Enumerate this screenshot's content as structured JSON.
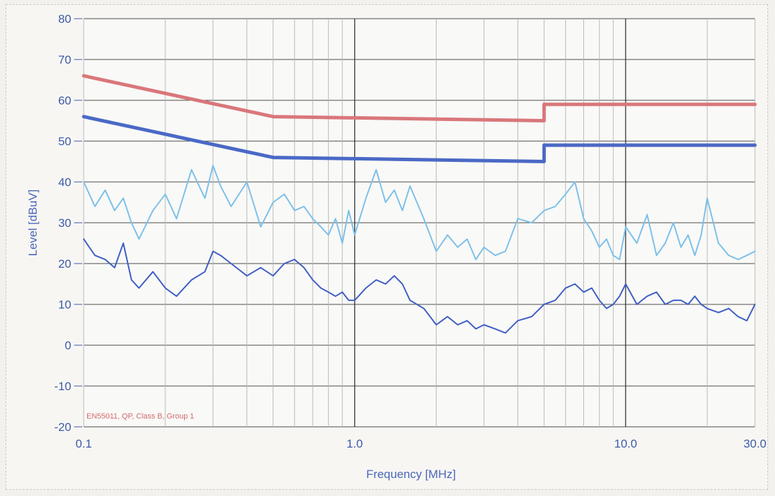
{
  "chart_data": {
    "type": "line",
    "title": "",
    "xlabel": "Frequency [MHz]",
    "ylabel": "Level [dBuV]",
    "x_scale": "log",
    "xlim": [
      0.1,
      30.0
    ],
    "ylim": [
      -20,
      80
    ],
    "x_tick_values": [
      0.1,
      1.0,
      10.0,
      30.0
    ],
    "x_tick_labels": [
      "0.1",
      "1.0",
      "10.0",
      "30.0"
    ],
    "y_tick_values": [
      80,
      70,
      60,
      50,
      40,
      30,
      20,
      10,
      0,
      -10,
      -20
    ],
    "y_tick_labels": [
      "80",
      "70",
      "60",
      "50",
      "40",
      "30",
      "20",
      "10",
      "0",
      "-10",
      "-20"
    ],
    "grid": true,
    "annotation": "EN55011, QP, Class B, Group 1",
    "series": [
      {
        "color": "#d9777a",
        "style": "limit",
        "x": [
          0.1,
          0.5,
          5.0,
          5.0,
          30.0
        ],
        "y": [
          66,
          56,
          55,
          59,
          59
        ]
      },
      {
        "color": "#4a69c6",
        "style": "limit",
        "x": [
          0.1,
          0.5,
          5.0,
          5.0,
          30.0
        ],
        "y": [
          56,
          46,
          45,
          49,
          49
        ]
      },
      {
        "color": "#7cc0ea",
        "style": "measurement",
        "x": [
          0.1,
          0.11,
          0.12,
          0.13,
          0.14,
          0.15,
          0.16,
          0.18,
          0.2,
          0.22,
          0.25,
          0.28,
          0.3,
          0.32,
          0.35,
          0.4,
          0.45,
          0.5,
          0.55,
          0.6,
          0.65,
          0.7,
          0.75,
          0.8,
          0.85,
          0.9,
          0.95,
          1.0,
          1.1,
          1.2,
          1.3,
          1.4,
          1.5,
          1.6,
          1.8,
          2.0,
          2.2,
          2.4,
          2.6,
          2.8,
          3.0,
          3.3,
          3.6,
          4.0,
          4.5,
          5.0,
          5.5,
          6.0,
          6.5,
          7.0,
          7.5,
          8.0,
          8.5,
          9.0,
          9.5,
          10.0,
          11.0,
          12.0,
          13.0,
          14.0,
          15.0,
          16.0,
          17.0,
          18.0,
          19.0,
          20.0,
          22.0,
          24.0,
          26.0,
          28.0,
          30.0
        ],
        "y": [
          40,
          34,
          38,
          33,
          36,
          30,
          26,
          33,
          37,
          31,
          43,
          36,
          44,
          39,
          34,
          40,
          29,
          35,
          37,
          33,
          34,
          31,
          29,
          27,
          31,
          25,
          33,
          27,
          36,
          43,
          35,
          38,
          33,
          39,
          31,
          23,
          27,
          24,
          26,
          21,
          24,
          22,
          23,
          31,
          30,
          33,
          34,
          37,
          40,
          31,
          28,
          24,
          26,
          22,
          21,
          29,
          25,
          32,
          22,
          25,
          30,
          24,
          27,
          22,
          27,
          36,
          25,
          22,
          21,
          22,
          23
        ]
      },
      {
        "color": "#3f5ec4",
        "style": "measurement",
        "x": [
          0.1,
          0.11,
          0.12,
          0.13,
          0.14,
          0.15,
          0.16,
          0.18,
          0.2,
          0.22,
          0.25,
          0.28,
          0.3,
          0.32,
          0.35,
          0.4,
          0.45,
          0.5,
          0.55,
          0.6,
          0.65,
          0.7,
          0.75,
          0.8,
          0.85,
          0.9,
          0.95,
          1.0,
          1.1,
          1.2,
          1.3,
          1.4,
          1.5,
          1.6,
          1.8,
          2.0,
          2.2,
          2.4,
          2.6,
          2.8,
          3.0,
          3.3,
          3.6,
          4.0,
          4.5,
          5.0,
          5.5,
          6.0,
          6.5,
          7.0,
          7.5,
          8.0,
          8.5,
          9.0,
          9.5,
          10.0,
          11.0,
          12.0,
          13.0,
          14.0,
          15.0,
          16.0,
          17.0,
          18.0,
          19.0,
          20.0,
          22.0,
          24.0,
          26.0,
          28.0,
          30.0
        ],
        "y": [
          26,
          22,
          21,
          19,
          25,
          16,
          14,
          18,
          14,
          12,
          16,
          18,
          23,
          22,
          20,
          17,
          19,
          17,
          20,
          21,
          19,
          16,
          14,
          13,
          12,
          13,
          11,
          11,
          14,
          16,
          15,
          17,
          15,
          11,
          9,
          5,
          7,
          5,
          6,
          4,
          5,
          4,
          3,
          6,
          7,
          10,
          11,
          14,
          15,
          13,
          14,
          11,
          9,
          10,
          12,
          15,
          10,
          12,
          13,
          10,
          11,
          11,
          10,
          12,
          10,
          9,
          8,
          9,
          7,
          6,
          10
        ]
      }
    ]
  }
}
